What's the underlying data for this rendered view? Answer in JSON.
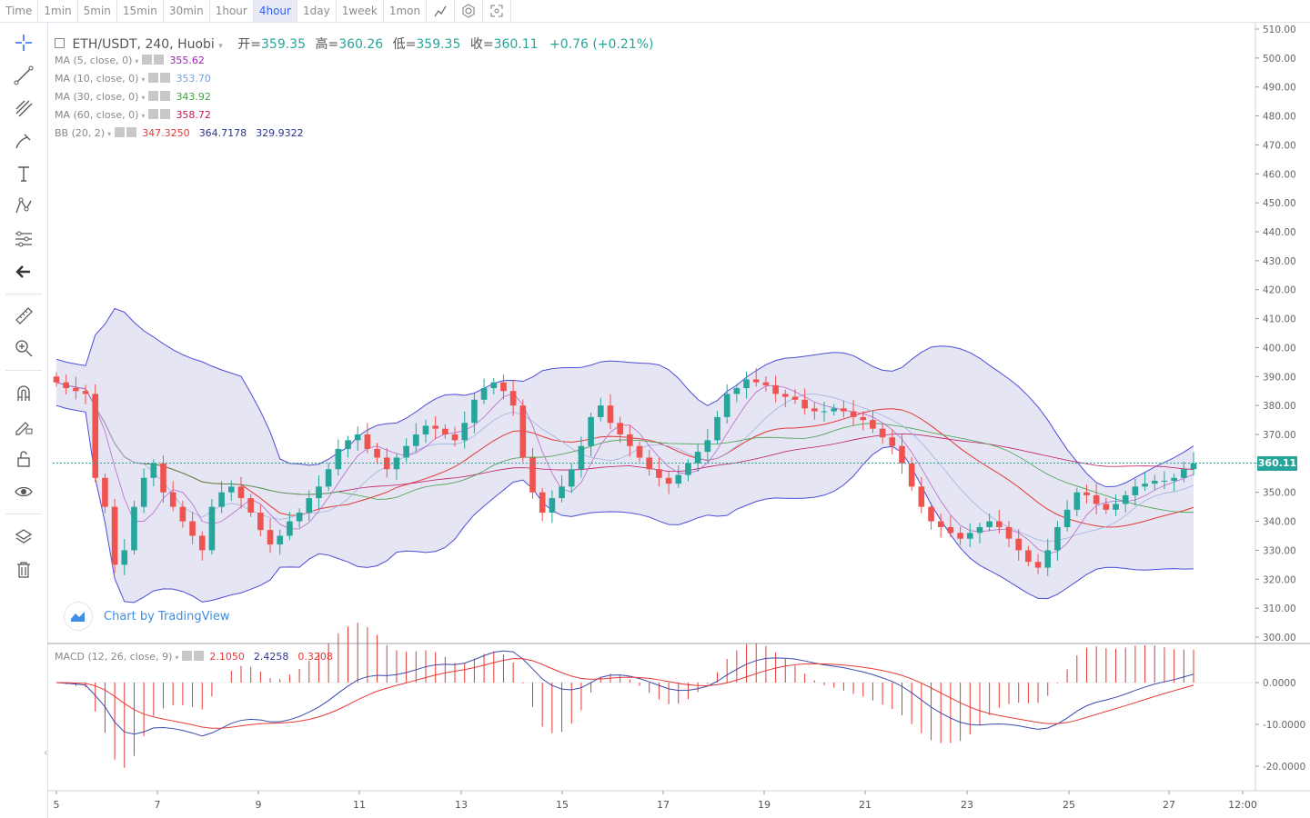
{
  "toolbar": {
    "intervals": [
      "Time",
      "1min",
      "5min",
      "15min",
      "30min",
      "1hour",
      "4hour",
      "1day",
      "1week",
      "1mon"
    ],
    "active_interval": "4hour",
    "icons": [
      "indicator-icon",
      "settings-icon",
      "fullscreen-icon"
    ]
  },
  "sidebar": {
    "tools": [
      "crosshair-icon",
      "trend-line-icon",
      "fib-icon",
      "brush-icon",
      "text-icon",
      "pattern-icon",
      "measure-icon",
      "back-arrow-icon",
      "ruler-icon",
      "zoom-in-icon",
      "magnet-icon",
      "lock-draw-icon",
      "unlock-icon",
      "eye-icon",
      "layers-icon",
      "trash-icon"
    ]
  },
  "header": {
    "symbol": "ETH/USDT, 240, Huobi",
    "open_label": "开=",
    "open": "359.35",
    "high_label": "高=",
    "high": "360.26",
    "low_label": "低=",
    "low": "359.35",
    "close_label": "收=",
    "close": "360.11",
    "change": "+0.76 (+0.21%)"
  },
  "indicators": [
    {
      "name": "MA (5, close, 0)",
      "values": [
        "355.62"
      ],
      "colors": [
        "#9c27b0"
      ]
    },
    {
      "name": "MA (10, close, 0)",
      "values": [
        "353.70"
      ],
      "colors": [
        "#7b9fd4"
      ]
    },
    {
      "name": "MA (30, close, 0)",
      "values": [
        "343.92"
      ],
      "colors": [
        "#43a047"
      ]
    },
    {
      "name": "MA (60, close, 0)",
      "values": [
        "358.72"
      ],
      "colors": [
        "#c2185b"
      ]
    },
    {
      "name": "BB (20, 2)",
      "values": [
        "347.3250",
        "364.7178",
        "329.9322"
      ],
      "colors": [
        "#e53935",
        "#283593",
        "#283593"
      ]
    }
  ],
  "macd": {
    "name": "MACD (12, 26, close, 9)",
    "values": [
      "2.1050",
      "2.4258",
      "0.3208"
    ],
    "colors": [
      "#e53935",
      "#283593",
      "#e53935"
    ]
  },
  "price_tag": "360.11",
  "watermark": "Chart by TradingView",
  "colors": {
    "up": "#26a69a",
    "down": "#ef5350",
    "band_fill": "#dcdcf0",
    "band_line": "#4d4dd9"
  },
  "chart_data": {
    "type": "candlestick",
    "price_axis": {
      "ticks": [
        "510.00",
        "500.00",
        "490.00",
        "480.00",
        "470.00",
        "460.00",
        "450.00",
        "440.00",
        "430.00",
        "420.00",
        "410.00",
        "400.00",
        "390.00",
        "380.00",
        "370.00",
        "360.00",
        "350.00",
        "340.00",
        "330.00",
        "320.00",
        "310.00",
        "300.00"
      ],
      "ylim": [
        300,
        510
      ]
    },
    "macd_axis": {
      "ticks": [
        "0.0000",
        "-10.0000",
        "-20.0000"
      ],
      "ylim": [
        -25,
        8
      ]
    },
    "x_labels": [
      "5",
      "7",
      "9",
      "11",
      "13",
      "15",
      "17",
      "19",
      "21",
      "23",
      "25",
      "27",
      "12:00"
    ],
    "close": [
      388,
      386,
      385,
      384,
      355,
      345,
      325,
      330,
      345,
      355,
      360,
      350,
      345,
      340,
      335,
      330,
      345,
      350,
      352,
      348,
      343,
      337,
      332,
      335,
      340,
      343,
      348,
      352,
      358,
      365,
      368,
      370,
      365,
      362,
      358,
      362,
      366,
      370,
      373,
      372,
      370,
      368,
      374,
      382,
      386,
      388,
      385,
      380,
      362,
      350,
      343,
      348,
      352,
      358,
      366,
      376,
      380,
      374,
      370,
      366,
      362,
      358,
      355,
      353,
      356,
      360,
      364,
      368,
      376,
      384,
      386,
      389,
      388,
      387,
      384,
      383,
      382,
      379,
      378,
      378,
      379,
      378,
      376,
      375,
      372,
      369,
      366,
      360,
      352,
      345,
      340,
      338,
      336,
      334,
      336,
      338,
      340,
      338,
      334,
      330,
      326,
      324,
      330,
      338,
      344,
      350,
      349,
      346,
      344,
      346,
      349,
      352,
      353,
      354,
      354,
      355,
      358,
      360
    ]
  }
}
